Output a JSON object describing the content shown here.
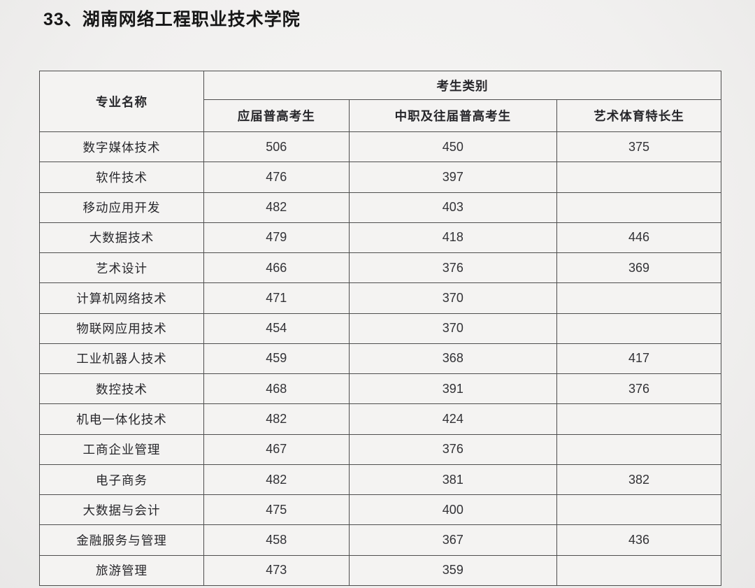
{
  "page": {
    "title": "33、湖南网络工程职业技术学院",
    "background_color": "#f1f0ef",
    "border_color": "#4e4e4e"
  },
  "table": {
    "header": {
      "major_label": "专业名称",
      "category_label": "考生类别",
      "columns": [
        "应届普高考生",
        "中职及往届普高考生",
        "艺术体育特长生"
      ]
    },
    "rows": [
      {
        "major": "数字媒体技术",
        "fresh": "506",
        "vocational": "450",
        "art_sports": "375"
      },
      {
        "major": "软件技术",
        "fresh": "476",
        "vocational": "397",
        "art_sports": ""
      },
      {
        "major": "移动应用开发",
        "fresh": "482",
        "vocational": "403",
        "art_sports": ""
      },
      {
        "major": "大数据技术",
        "fresh": "479",
        "vocational": "418",
        "art_sports": "446"
      },
      {
        "major": "艺术设计",
        "fresh": "466",
        "vocational": "376",
        "art_sports": "369"
      },
      {
        "major": "计算机网络技术",
        "fresh": "471",
        "vocational": "370",
        "art_sports": ""
      },
      {
        "major": "物联网应用技术",
        "fresh": "454",
        "vocational": "370",
        "art_sports": ""
      },
      {
        "major": "工业机器人技术",
        "fresh": "459",
        "vocational": "368",
        "art_sports": "417"
      },
      {
        "major": "数控技术",
        "fresh": "468",
        "vocational": "391",
        "art_sports": "376"
      },
      {
        "major": "机电一体化技术",
        "fresh": "482",
        "vocational": "424",
        "art_sports": ""
      },
      {
        "major": "工商企业管理",
        "fresh": "467",
        "vocational": "376",
        "art_sports": ""
      },
      {
        "major": "电子商务",
        "fresh": "482",
        "vocational": "381",
        "art_sports": "382"
      },
      {
        "major": "大数据与会计",
        "fresh": "475",
        "vocational": "400",
        "art_sports": ""
      },
      {
        "major": "金融服务与管理",
        "fresh": "458",
        "vocational": "367",
        "art_sports": "436"
      },
      {
        "major": "旅游管理",
        "fresh": "473",
        "vocational": "359",
        "art_sports": ""
      }
    ]
  }
}
